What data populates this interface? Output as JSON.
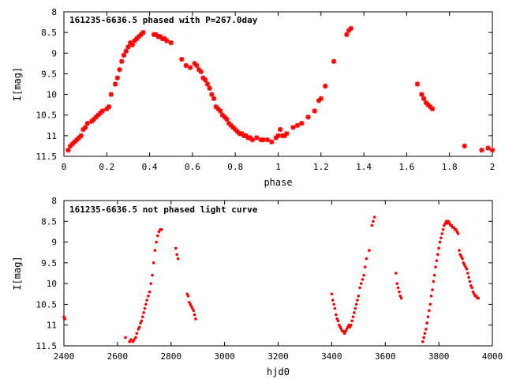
{
  "colors": {
    "points": "#ff0000",
    "axes": "#000000",
    "background": "#ffffff"
  },
  "chart_data": [
    {
      "type": "scatter",
      "title": "161235-6636.5 phased with P=267.0day",
      "xlabel": "phase",
      "ylabel": "I[mag]",
      "xlim": [
        0,
        2
      ],
      "ylim": [
        11.5,
        8
      ],
      "y_inverted": true,
      "xticks": [
        "0",
        "0.2",
        "0.4",
        "0.6",
        "0.8",
        "1",
        "1.2",
        "1.4",
        "1.6",
        "1.8",
        "2"
      ],
      "yticks": [
        "8",
        "8.5",
        "9",
        "9.5",
        "10",
        "10.5",
        "11",
        "11.5"
      ],
      "marker": "asterisk",
      "series": [
        {
          "x": [
            0.02,
            0.03,
            0.04,
            0.05,
            0.06,
            0.07,
            0.08,
            0.09,
            0.1,
            0.11,
            0.13,
            0.14,
            0.15,
            0.16,
            0.17,
            0.18,
            0.2,
            0.21,
            0.22,
            0.24,
            0.25,
            0.26,
            0.27,
            0.28,
            0.29,
            0.3,
            0.31,
            0.32,
            0.33,
            0.34,
            0.35,
            0.36,
            0.37,
            0.42,
            0.43,
            0.44,
            0.45,
            0.46,
            0.47,
            0.48,
            0.5,
            0.55,
            0.57,
            0.59,
            0.61,
            0.62,
            0.63,
            0.64,
            0.65,
            0.66,
            0.67,
            0.68,
            0.69,
            0.7,
            0.71,
            0.72,
            0.73,
            0.74,
            0.75,
            0.76,
            0.77,
            0.78,
            0.79,
            0.8,
            0.81,
            0.82,
            0.83,
            0.84,
            0.85,
            0.86,
            0.87,
            0.88,
            0.9,
            0.92,
            0.93,
            0.95,
            0.97,
            0.99,
            1.0,
            1.01,
            1.02,
            1.03,
            1.04,
            1.07,
            1.09,
            1.11,
            1.14,
            1.17,
            1.19,
            1.2,
            1.22,
            1.26,
            1.32,
            1.33,
            1.34
          ],
          "y": [
            11.35,
            11.25,
            11.2,
            11.15,
            11.1,
            11.05,
            11.0,
            10.85,
            10.8,
            10.7,
            10.65,
            10.6,
            10.55,
            10.5,
            10.45,
            10.4,
            10.35,
            10.3,
            10.0,
            9.75,
            9.6,
            9.4,
            9.2,
            9.05,
            8.95,
            8.85,
            8.75,
            8.8,
            8.7,
            8.65,
            8.6,
            8.55,
            8.5,
            8.55,
            8.55,
            8.6,
            8.6,
            8.65,
            8.65,
            8.7,
            8.75,
            9.15,
            9.3,
            9.35,
            9.25,
            9.3,
            9.4,
            9.45,
            9.6,
            9.65,
            9.75,
            9.85,
            10.0,
            10.1,
            10.3,
            10.35,
            10.4,
            10.5,
            10.55,
            10.6,
            10.7,
            10.75,
            10.8,
            10.85,
            10.9,
            10.95,
            10.95,
            11.0,
            11.0,
            11.05,
            11.05,
            11.1,
            11.05,
            11.1,
            11.1,
            11.1,
            11.15,
            11.05,
            11.0,
            10.85,
            11.0,
            11.0,
            10.95,
            10.8,
            10.75,
            10.7,
            10.55,
            10.4,
            10.15,
            10.1,
            9.8,
            9.2,
            8.55,
            8.45,
            8.4
          ]
        },
        {
          "x": [
            1.65,
            1.67,
            1.68,
            1.69,
            1.7,
            1.71,
            1.72,
            1.87,
            1.95,
            1.98,
            2.0
          ],
          "y": [
            9.75,
            10.0,
            10.1,
            10.2,
            10.25,
            10.3,
            10.35,
            11.25,
            11.35,
            11.3,
            11.35
          ]
        }
      ]
    },
    {
      "type": "scatter",
      "title": "161235-6636.5 not phased light curve",
      "xlabel": "hjd0",
      "ylabel": "I[mag]",
      "xlim": [
        2400,
        4000
      ],
      "ylim": [
        11.5,
        8
      ],
      "y_inverted": true,
      "xticks": [
        "2400",
        "2600",
        "2800",
        "3000",
        "3200",
        "3400",
        "3600",
        "3800",
        "4000"
      ],
      "yticks": [
        "8",
        "8.5",
        "9",
        "9.5",
        "10",
        "10.5",
        "11",
        "11.5"
      ],
      "marker": "dot",
      "series": [
        {
          "x": [
            2400,
            2402,
            2404,
            2630,
            2645,
            2650,
            2658,
            2662,
            2668,
            2672,
            2678,
            2682,
            2686,
            2690,
            2694,
            2698,
            2702,
            2706,
            2710,
            2715,
            2720,
            2725,
            2730,
            2735,
            2740,
            2745,
            2750,
            2755,
            2760,
            2765,
            2818,
            2822,
            2826,
            2860,
            2864,
            2868,
            2872,
            2876,
            2880,
            2884,
            2888,
            2892
          ],
          "y": [
            10.8,
            10.85,
            10.85,
            11.3,
            11.4,
            11.35,
            11.4,
            11.35,
            11.3,
            11.2,
            11.1,
            11.05,
            10.95,
            10.9,
            10.8,
            10.7,
            10.6,
            10.5,
            10.4,
            10.3,
            10.2,
            10.0,
            9.8,
            9.5,
            9.2,
            9.0,
            8.85,
            8.75,
            8.7,
            8.7,
            9.15,
            9.3,
            9.4,
            10.25,
            10.3,
            10.45,
            10.5,
            10.55,
            10.6,
            10.65,
            10.75,
            10.85
          ]
        },
        {
          "x": [
            3400,
            3404,
            3408,
            3412,
            3416,
            3420,
            3424,
            3428,
            3432,
            3436,
            3440,
            3444,
            3448,
            3452,
            3456,
            3460,
            3464,
            3468,
            3472,
            3476,
            3480,
            3484,
            3488,
            3492,
            3496,
            3500,
            3505,
            3510,
            3515,
            3520,
            3525,
            3530,
            3540,
            3550,
            3555,
            3560
          ],
          "y": [
            10.25,
            10.4,
            10.5,
            10.6,
            10.75,
            10.85,
            10.9,
            11.0,
            11.05,
            11.1,
            11.15,
            11.15,
            11.2,
            11.15,
            11.1,
            11.05,
            11.0,
            11.05,
            11.0,
            10.9,
            10.8,
            10.7,
            10.6,
            10.5,
            10.4,
            10.3,
            10.1,
            10.0,
            9.9,
            9.8,
            9.6,
            9.4,
            9.2,
            8.6,
            8.5,
            8.4
          ]
        },
        {
          "x": [
            3640,
            3644,
            3648,
            3652,
            3656,
            3660
          ],
          "y": [
            9.75,
            10.0,
            10.1,
            10.2,
            10.3,
            10.35
          ]
        },
        {
          "x": [
            3740,
            3744,
            3748,
            3752,
            3756,
            3760,
            3764,
            3768,
            3772,
            3776,
            3780,
            3784,
            3788,
            3792,
            3796,
            3800,
            3804,
            3808,
            3812,
            3816,
            3820,
            3824,
            3828,
            3832,
            3836,
            3840,
            3844,
            3848,
            3852,
            3856,
            3860,
            3864,
            3868,
            3872,
            3876,
            3880,
            3884,
            3888,
            3892,
            3896,
            3900,
            3904,
            3908,
            3912,
            3916,
            3920,
            3924,
            3928,
            3932,
            3936,
            3940,
            3944,
            3948
          ],
          "y": [
            11.4,
            11.3,
            11.2,
            11.1,
            10.95,
            10.8,
            10.65,
            10.5,
            10.3,
            10.15,
            9.95,
            9.8,
            9.6,
            9.45,
            9.3,
            9.15,
            9.0,
            8.9,
            8.8,
            8.7,
            8.6,
            8.55,
            8.5,
            8.55,
            8.5,
            8.55,
            8.6,
            8.6,
            8.65,
            8.65,
            8.7,
            8.7,
            8.75,
            8.8,
            9.2,
            9.3,
            9.35,
            9.4,
            9.5,
            9.55,
            9.6,
            9.65,
            9.75,
            9.85,
            9.95,
            10.05,
            10.1,
            10.2,
            10.25,
            10.3,
            10.3,
            10.35,
            10.35
          ]
        }
      ]
    }
  ]
}
